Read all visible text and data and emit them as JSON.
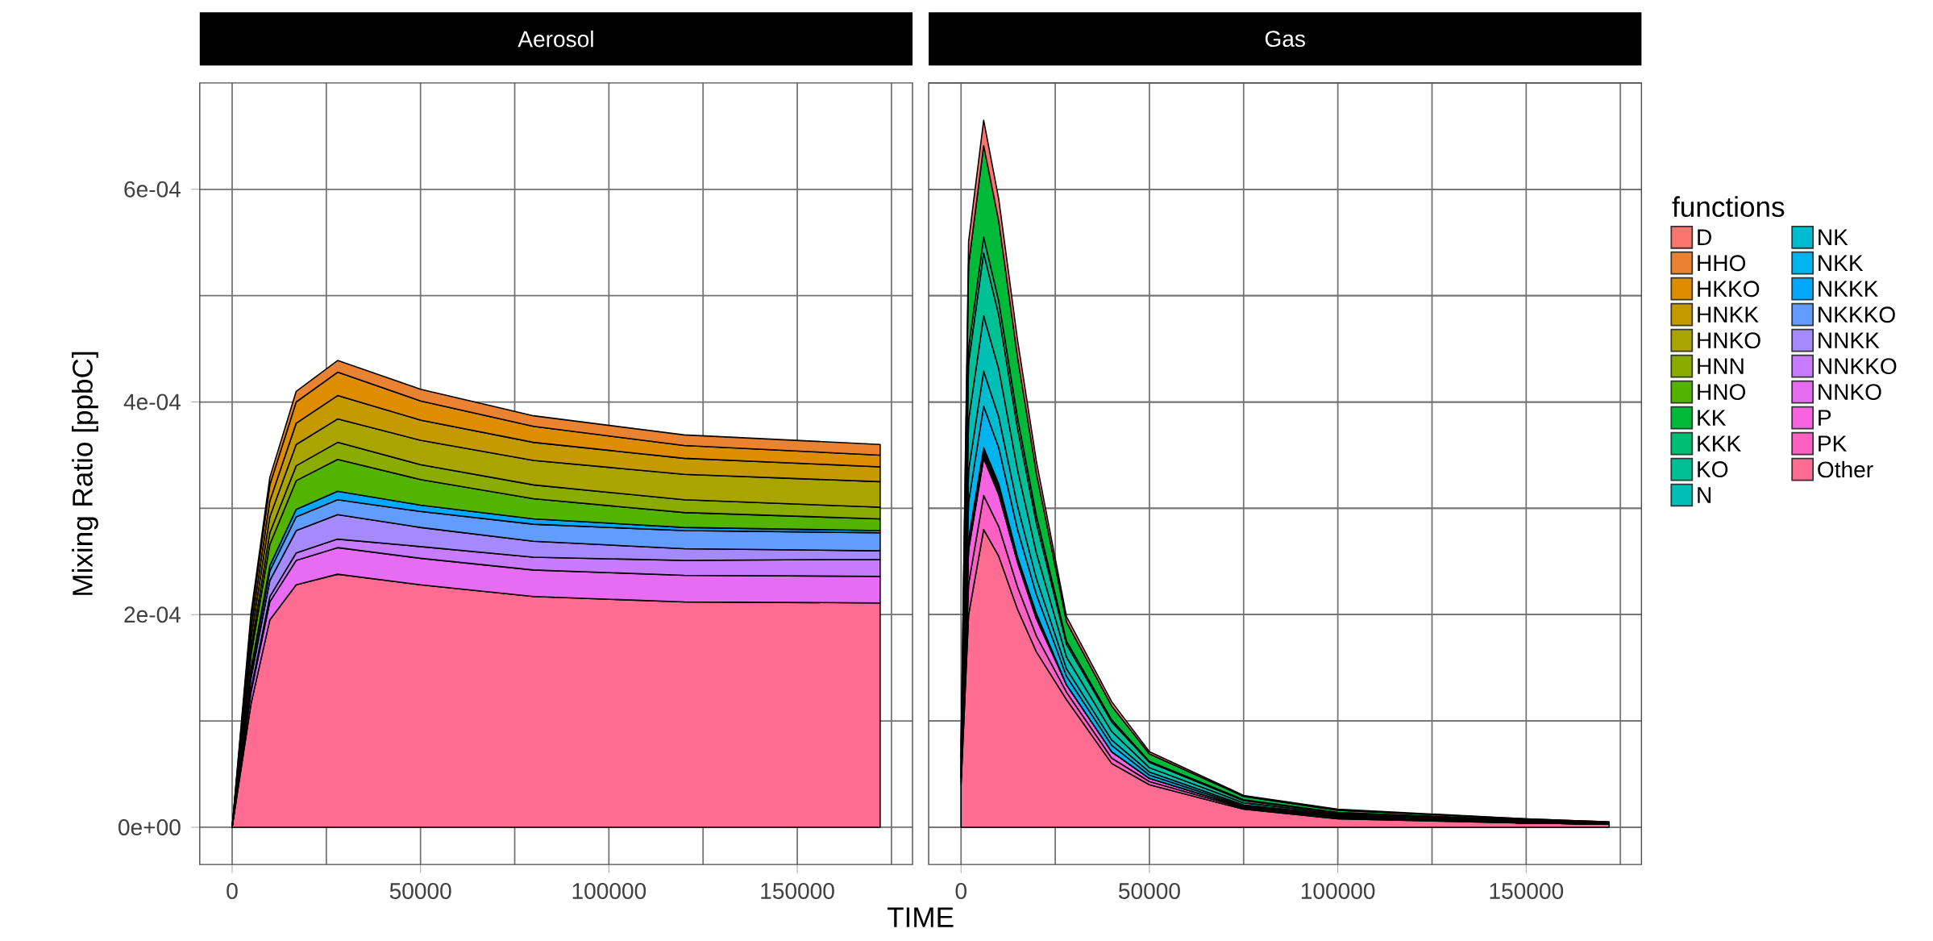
{
  "chart_data": [
    {
      "type": "area",
      "title": "Aerosol",
      "xlabel": "TIME",
      "ylabel": "Mixing Ratio [ppbC]",
      "stacked": true,
      "grid": true,
      "x": [
        0,
        5000,
        10000,
        17000,
        28000,
        50000,
        80000,
        120000,
        172000
      ],
      "xlim": [
        -8600,
        180600
      ],
      "ylim": [
        -3.5e-05,
        0.0007
      ],
      "xticks": [
        0,
        {
          "value": 25000,
          "label": null
        },
        50000,
        {
          "value": 75000,
          "label": null
        },
        100000,
        {
          "value": 125000,
          "label": null
        },
        150000,
        {
          "value": 175000,
          "label": null
        }
      ],
      "yticks": [
        {
          "value": 0,
          "label": "0e+00"
        },
        {
          "value": 0.0001,
          "label": null
        },
        {
          "value": 0.0002,
          "label": "2e-04"
        },
        {
          "value": 0.0003,
          "label": null
        },
        {
          "value": 0.0004,
          "label": "4e-04"
        },
        {
          "value": 0.0005,
          "label": null
        },
        {
          "value": 0.0006,
          "label": "6e-04"
        }
      ],
      "series": [
        {
          "color": "#ff6c91",
          "values": [
            0,
            0.000116,
            0.000195,
            0.000228,
            0.000238,
            0.000228,
            0.000217,
            0.000212,
            0.000211
          ]
        },
        {
          "color": "#e76bf3",
          "values": [
            0,
            1.1e-05,
            1.7e-05,
            2.3e-05,
            2.5e-05,
            2.5e-05,
            2.5e-05,
            2.5e-05,
            2.5e-05
          ]
        },
        {
          "color": "#c77cff",
          "values": [
            0,
            3e-06,
            5e-06,
            7e-06,
            8e-06,
            1.1e-05,
            1.2e-05,
            1.4e-05,
            1.6e-05
          ]
        },
        {
          "color": "#a58aff",
          "values": [
            0,
            1e-05,
            1.5e-05,
            2.1e-05,
            2.3e-05,
            1.8e-05,
            1.5e-05,
            1.1e-05,
            8e-06
          ]
        },
        {
          "color": "#619cff",
          "values": [
            0,
            6e-06,
            9e-06,
            1.3e-05,
            1.4e-05,
            1.5e-05,
            1.6e-05,
            1.7e-05,
            1.7e-05
          ]
        },
        {
          "color": "#00a9ff",
          "values": [
            0,
            3e-06,
            5e-06,
            7e-06,
            8e-06,
            6e-06,
            5e-06,
            3e-06,
            2e-06
          ]
        },
        {
          "color": "#53b400",
          "values": [
            0,
            1.3e-05,
            2e-05,
            2.7e-05,
            3e-05,
            2.4e-05,
            1.9e-05,
            1.4e-05,
            1.1e-05
          ]
        },
        {
          "color": "#8aab00",
          "values": [
            0,
            7e-06,
            1.1e-05,
            1.4e-05,
            1.6e-05,
            1.4e-05,
            1.3e-05,
            1.2e-05,
            1.1e-05
          ]
        },
        {
          "color": "#a9a400",
          "values": [
            0,
            9e-06,
            1.5e-05,
            2e-05,
            2.2e-05,
            2.3e-05,
            2.3e-05,
            2.4e-05,
            2.4e-05
          ]
        },
        {
          "color": "#c59900",
          "values": [
            0,
            9e-06,
            1.5e-05,
            2e-05,
            2.2e-05,
            1.9e-05,
            1.7e-05,
            1.5e-05,
            1.4e-05
          ]
        },
        {
          "color": "#de8c00",
          "values": [
            0,
            9e-06,
            1.5e-05,
            2e-05,
            2.2e-05,
            1.8e-05,
            1.5e-05,
            1.2e-05,
            1.1e-05
          ]
        },
        {
          "color": "#ea8331",
          "values": [
            0,
            5e-06,
            7e-06,
            1e-05,
            1.1e-05,
            1.1e-05,
            1e-05,
            1e-05,
            1e-05
          ]
        }
      ]
    },
    {
      "type": "area",
      "title": "Gas",
      "stacked": true,
      "grid": true,
      "legend": "right",
      "legend_title": "functions",
      "tick_labels": "x",
      "x": [
        0,
        2000,
        6000,
        10000,
        15000,
        20000,
        28000,
        40000,
        50000,
        75000,
        100000,
        150000,
        172000
      ],
      "xlim": [
        -8600,
        180600
      ],
      "ylim": [
        -3.5e-05,
        0.0007
      ],
      "xticks": [
        0,
        {
          "value": 25000,
          "label": null
        },
        50000,
        {
          "value": 75000,
          "label": null
        },
        100000,
        {
          "value": 125000,
          "label": null
        },
        150000,
        {
          "value": 175000,
          "label": null
        }
      ],
      "yticks": [
        {
          "value": 0,
          "label": null
        },
        {
          "value": 0.0001,
          "label": null
        },
        {
          "value": 0.0002,
          "label": null
        },
        {
          "value": 0.0003,
          "label": null
        },
        {
          "value": 0.0004,
          "label": null
        },
        {
          "value": 0.0005,
          "label": null
        },
        {
          "value": 0.0006,
          "label": null
        }
      ],
      "series": [
        {
          "name": "Other",
          "color": "#ff6c91",
          "values": [
            4e-05,
            0.0002,
            0.00028,
            0.000255,
            0.000205,
            0.000165,
            0.00012,
            6e-05,
            4e-05,
            1.7e-05,
            8e-06,
            4e-06,
            3e-06
          ]
        },
        {
          "name": "PK",
          "color": "#ff61c3",
          "values": [
            3e-06,
            2.9e-05,
            3.2e-05,
            2.8e-05,
            2.1e-05,
            1.5e-05,
            7e-06,
            5e-06,
            3e-06,
            1e-06,
            1e-06,
            0,
            0
          ]
        },
        {
          "name": "P",
          "color": "#f763e0",
          "values": [
            4e-06,
            3.2e-05,
            3.5e-05,
            3e-05,
            2.3e-05,
            1.6e-05,
            7e-06,
            6e-06,
            3e-06,
            1e-06,
            1e-06,
            0,
            0
          ]
        },
        {
          "name": "NNKO",
          "color": "#e76bf3",
          "values": [
            0,
            2e-06,
            2e-06,
            2e-06,
            1e-06,
            1e-06,
            0,
            0,
            0,
            0,
            0,
            0,
            0
          ]
        },
        {
          "name": "NNKKO",
          "color": "#c77cff",
          "values": [
            0,
            2e-06,
            2e-06,
            2e-06,
            1e-06,
            1e-06,
            0,
            0,
            0,
            0,
            0,
            0,
            0
          ]
        },
        {
          "name": "NNKK",
          "color": "#a58aff",
          "values": [
            0,
            2e-06,
            2e-06,
            2e-06,
            1e-06,
            1e-06,
            0,
            0,
            0,
            0,
            0,
            0,
            0
          ]
        },
        {
          "name": "NKKKO",
          "color": "#619cff",
          "values": [
            0,
            2e-06,
            2e-06,
            2e-06,
            1e-06,
            1e-06,
            0,
            0,
            0,
            0,
            0,
            0,
            0
          ]
        },
        {
          "name": "NKKK",
          "color": "#00a9ff",
          "values": [
            0,
            2e-06,
            2e-06,
            2e-06,
            1e-06,
            1e-06,
            0,
            0,
            0,
            0,
            0,
            0,
            0
          ]
        },
        {
          "name": "NKK",
          "color": "#00b4ef",
          "values": [
            4e-06,
            3.5e-05,
            3.9e-05,
            3.4e-05,
            2.6e-05,
            1.8e-05,
            8e-06,
            6e-06,
            3e-06,
            1e-06,
            1e-06,
            1e-06,
            0
          ]
        },
        {
          "name": "NK",
          "color": "#00bcd0",
          "values": [
            3e-06,
            3e-05,
            3.3e-05,
            2.9e-05,
            2.2e-05,
            1.5e-05,
            7e-06,
            5e-06,
            3e-06,
            1e-06,
            1e-06,
            0,
            0
          ]
        },
        {
          "name": "N",
          "color": "#00bfb4",
          "values": [
            5e-06,
            4.7e-05,
            5.2e-05,
            4.5e-05,
            3.4e-05,
            2.4e-05,
            1.1e-05,
            8e-06,
            4e-06,
            2e-06,
            1e-06,
            1e-06,
            0
          ]
        },
        {
          "name": "KO",
          "color": "#00c095",
          "values": [
            6e-06,
            5.4e-05,
            5.9e-05,
            5.1e-05,
            3.9e-05,
            2.8e-05,
            1.2e-05,
            9e-06,
            5e-06,
            2e-06,
            1e-06,
            1e-06,
            1e-06
          ]
        },
        {
          "name": "KKK",
          "color": "#00bf74",
          "values": [
            2e-06,
            1.4e-05,
            1.5e-05,
            1.3e-05,
            1e-05,
            7e-06,
            3e-06,
            2e-06,
            1e-06,
            1e-06,
            0,
            0,
            0
          ]
        },
        {
          "name": "KK",
          "color": "#00ba38",
          "values": [
            9e-06,
            7.8e-05,
            8.6e-05,
            7.5e-05,
            5.7e-05,
            4e-05,
            1.8e-05,
            1.3e-05,
            7e-06,
            3e-06,
            2e-06,
            1e-06,
            1e-06
          ]
        },
        {
          "name": "HNO",
          "color": "#53b400",
          "values": [
            null,
            null,
            null,
            null,
            null,
            null,
            null,
            null,
            null,
            null,
            null,
            null,
            null
          ]
        },
        {
          "name": "HNN",
          "color": "#8aab00",
          "values": [
            null,
            null,
            null,
            null,
            null,
            null,
            null,
            null,
            null,
            null,
            null,
            null,
            null
          ]
        },
        {
          "name": "HNKO",
          "color": "#a9a400",
          "values": [
            null,
            null,
            null,
            null,
            null,
            null,
            null,
            null,
            null,
            null,
            null,
            null,
            null
          ]
        },
        {
          "name": "HNKK",
          "color": "#c59900",
          "values": [
            null,
            null,
            null,
            null,
            null,
            null,
            null,
            null,
            null,
            null,
            null,
            null,
            null
          ]
        },
        {
          "name": "HKKO",
          "color": "#de8c00",
          "values": [
            null,
            null,
            null,
            null,
            null,
            null,
            null,
            null,
            null,
            null,
            null,
            null,
            null
          ]
        },
        {
          "name": "HHO",
          "color": "#ea8331",
          "values": [
            null,
            null,
            null,
            null,
            null,
            null,
            null,
            null,
            null,
            null,
            null,
            null,
            null
          ]
        },
        {
          "name": "D",
          "color": "#f8766d",
          "values": [
            3e-06,
            2.2e-05,
            2.4e-05,
            2.1e-05,
            1.6e-05,
            1.1e-05,
            5e-06,
            4e-06,
            2e-06,
            1e-06,
            1e-06,
            0,
            0
          ]
        }
      ]
    }
  ]
}
